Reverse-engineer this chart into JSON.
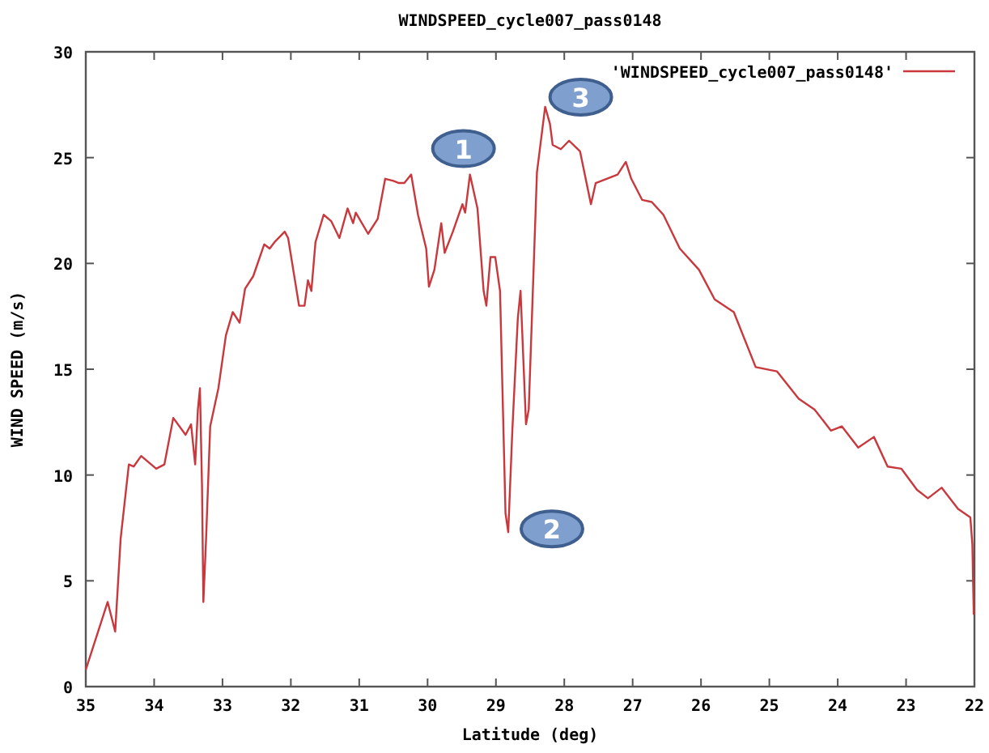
{
  "chart_data": {
    "type": "line",
    "title": "WINDSPEED_cycle007_pass0148",
    "xlabel": "Latitude (deg)",
    "ylabel": "WIND SPEED (m/s)",
    "xlim": [
      35,
      22
    ],
    "xticks": [
      35,
      34,
      33,
      32,
      31,
      30,
      29,
      28,
      27,
      26,
      25,
      24,
      23,
      22
    ],
    "ylim": [
      0,
      30
    ],
    "yticks": [
      0,
      5,
      10,
      15,
      20,
      25,
      30
    ],
    "grid": false,
    "legend": "top right",
    "marker": "none",
    "line_style": "solid",
    "annotations": [
      {
        "text": "1",
        "x": 29.38,
        "y": 24.2
      },
      {
        "text": "2",
        "x": 28.82,
        "y": 7.3
      },
      {
        "text": "3",
        "x": 28.28,
        "y": 27.4
      }
    ],
    "series": [
      {
        "name": "'WINDSPEED_cycle007_pass0148'",
        "color": "#c8383c",
        "x": [
          35,
          34.68,
          34.57,
          34.49,
          34.37,
          34.3,
          34.19,
          33.97,
          33.85,
          33.72,
          33.54,
          33.46,
          33.4,
          33.36,
          33.33,
          33.3,
          33.28,
          33.24,
          33.18,
          33.06,
          32.95,
          32.85,
          32.75,
          32.67,
          32.55,
          32.39,
          32.31,
          32.24,
          32.09,
          32.04,
          31.88,
          31.8,
          31.75,
          31.7,
          31.64,
          31.52,
          31.41,
          31.29,
          31.17,
          31.09,
          31.05,
          30.87,
          30.73,
          30.62,
          30.5,
          30.42,
          30.34,
          30.24,
          30.14,
          30.02,
          29.98,
          29.9,
          29.8,
          29.75,
          29.63,
          29.49,
          29.45,
          29.38,
          29.27,
          29.18,
          29.14,
          29.08,
          29.01,
          28.94,
          28.86,
          28.82,
          28.76,
          28.68,
          28.64,
          28.56,
          28.52,
          28.4,
          28.28,
          28.21,
          28.17,
          28.05,
          27.93,
          27.77,
          27.61,
          27.54,
          27.38,
          27.22,
          27.1,
          27.02,
          26.86,
          26.72,
          26.55,
          26.31,
          26.03,
          25.8,
          25.52,
          25.2,
          24.89,
          24.57,
          24.34,
          24.1,
          23.94,
          23.7,
          23.47,
          23.27,
          23.07,
          22.84,
          22.68,
          22.48,
          22.24,
          22.06,
          22.03,
          22.01
        ],
        "values": [
          0.8,
          4.0,
          2.6,
          7.0,
          10.5,
          10.4,
          10.9,
          10.3,
          10.5,
          12.7,
          11.9,
          12.4,
          10.5,
          13.1,
          14.1,
          9.5,
          4.0,
          7.0,
          12.3,
          14.1,
          16.6,
          17.7,
          17.2,
          18.8,
          19.4,
          20.9,
          20.7,
          21.0,
          21.5,
          21.2,
          18.0,
          18.0,
          19.2,
          18.7,
          21.0,
          22.3,
          22.0,
          21.2,
          22.6,
          21.9,
          22.4,
          21.4,
          22.1,
          24.0,
          23.9,
          23.8,
          23.8,
          24.2,
          22.3,
          20.7,
          18.9,
          19.7,
          21.9,
          20.5,
          21.5,
          22.8,
          22.4,
          24.2,
          22.6,
          18.7,
          18.0,
          20.3,
          20.3,
          18.7,
          8.2,
          7.3,
          12.1,
          17.4,
          18.7,
          12.4,
          13.1,
          24.3,
          27.4,
          26.6,
          25.6,
          25.4,
          25.8,
          25.3,
          22.8,
          23.8,
          24.0,
          24.2,
          24.8,
          24.0,
          23.0,
          22.9,
          22.3,
          20.7,
          19.7,
          18.3,
          17.7,
          15.1,
          14.9,
          13.6,
          13.1,
          12.1,
          12.3,
          11.3,
          11.8,
          10.4,
          10.3,
          9.3,
          8.9,
          9.4,
          8.4,
          8.0,
          6.7,
          3.4
        ]
      }
    ]
  }
}
